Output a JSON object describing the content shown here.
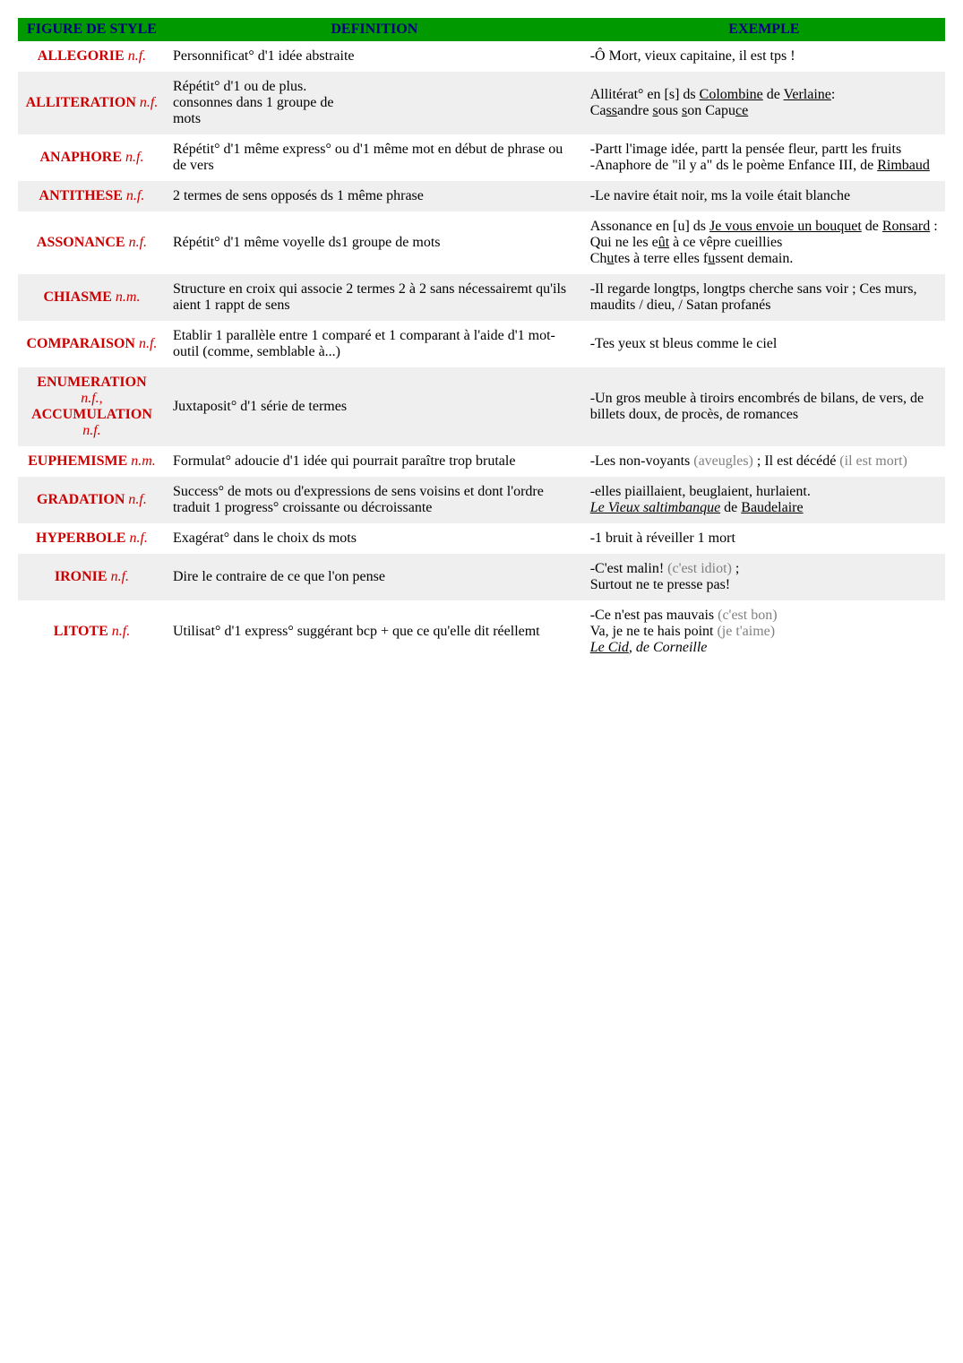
{
  "columns": {
    "c1": "FIGURE DE STYLE",
    "c2": "DEFINITION",
    "c3": "EXEMPLE"
  },
  "rows": {
    "allegorie": {
      "term_name": "ALLEGORIE",
      "term_pos": "n.f."
    },
    "alliteration": {
      "term_name": "ALLITERATION",
      "term_pos": "n.f."
    },
    "anaphore": {
      "term_name": "ANAPHORE",
      "term_pos": "n.f."
    },
    "antithese": {
      "term_name": "ANTITHESE",
      "term_pos": "n.f."
    },
    "assonance": {
      "term_name": "ASSONANCE",
      "term_pos": "n.f."
    },
    "chiasme": {
      "term_name": "CHIASME",
      "term_pos": "n.m."
    },
    "comparaison": {
      "term_name": "COMPARAISON",
      "term_pos": "n.f."
    },
    "enumeration": {
      "term_name_l1": "ENUMERATION",
      "term_pos_l1": "n.f.,",
      "term_name_l2": "ACCUMULATION",
      "term_pos_l2": "n.f."
    },
    "euphemisme": {
      "term_name": "EUPHEMISME",
      "term_pos": "n.m."
    },
    "gradation": {
      "term_name": "GRADATION",
      "term_pos": "n.f."
    },
    "hyperbole": {
      "term_name": "HYPERBOLE",
      "term_pos": "n.f."
    },
    "ironie": {
      "term_name": "IRONIE",
      "term_pos": "n.f."
    },
    "litote": {
      "term_name": "LITOTE",
      "term_pos": "n.f."
    }
  },
  "defs": {
    "allegorie": "Personnificat° d'1 idée abstraite",
    "alliteration_l1": "Répétit° d'1 ou de plus.",
    "alliteration_l2a": "consonnes dans 1 groupe de ",
    "alliteration_l3": "mots",
    "anaphore": "Répétit° d'1 même express° ou d'1 même mot en début de phrase ou de vers",
    "antithese": "2 termes de sens opposés ds 1 même phrase",
    "assonance": "Répétit° d'1 même voyelle ds1 groupe de mots",
    "chiasme": "Structure en croix qui associe 2 termes 2 à 2 sans nécessairemt qu'ils aient 1 rappt de sens",
    "comparaison": "Etablir 1 parallèle entre 1 comparé et 1 comparant à l'aide d'1 mot-outil (comme, semblable à...)",
    "enumeration": "Juxtaposit° d'1 série de termes",
    "euphemisme": "Formulat° adoucie d'1 idée qui pourrait paraître trop brutale",
    "gradation": "Success° de mots ou d'expressions de sens voisins et dont l'ordre traduit 1 progress° croissante ou décroissante",
    "hyperbole": "Exagérat° dans le choix ds mots",
    "ironie": "Dire le contraire de ce que l'on pense",
    "litote": "Utilisat° d'1 express° suggérant bcp + que ce qu'elle dit réellemt"
  },
  "ex": {
    "allegorie": "-Ô Mort, vieux capitaine, il est tps !",
    "allit_l1a": "Allitérat° en [s] ds ",
    "allit_l1b": "Colombine",
    "allit_l1c": " de ",
    "allit_l2": "Verlaine",
    "anaphore_l1": "-Partt l'image idée, partt la pensée fleur, partt les fruits",
    "anaphore_l2a": "-Anaphore de \"il y a\" ds le poème Enfance III, de ",
    "anaphore_l2b": "Rimbaud",
    "antithese": "-Le navire était noir, ms la voile était blanche",
    "chiasme": "-Il regarde longtps, longtps cherche sans voir ; Ces murs, maudits / dieu, / Satan profanés",
    "comparaison": "-Tes yeux st bleus comme le ciel",
    "enumeration": "-Un gros meuble à tiroirs encombrés de bilans, de vers, de billets doux, de procès, de romances",
    "euph_a": "-Les non-voyants ",
    "euph_b": "(aveugles)",
    "euph_c": " ; Il est décédé ",
    "euph_d": "(il est mort)",
    "grad_l1": "-elles piaillaient, beuglaient, hurlaient.",
    "grad_l2a": "Le Vieux saltimbanque",
    "grad_l2b": " de ",
    "grad_l2c": "Baudelaire",
    "hyperbole": "-1 bruit à réveiller 1 mort",
    "ironie_a": "-C'est malin! ",
    "ironie_b": "(c'est idiot)",
    "ironie_c": " ;",
    "ironie_l2": "Surtout ne te presse pas!",
    "litote_a": "-Ce n'est pas mauvais ",
    "litote_b": "(c'est bon)",
    "litote_l2a": "Va, je ne te hais point ",
    "litote_l2b": "(je t'aime)",
    "litote_l3a": "Le Cid",
    "litote_l3b": ", de Corneille"
  }
}
